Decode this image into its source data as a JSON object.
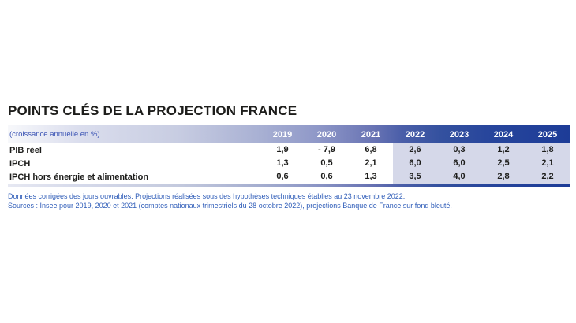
{
  "title": "POINTS CLÉS DE LA PROJECTION FRANCE",
  "table": {
    "unit_label": "(croissance annuelle en %)",
    "years": [
      "2019",
      "2020",
      "2021",
      "2022",
      "2023",
      "2024",
      "2025"
    ],
    "rows": [
      {
        "label": "PIB réel",
        "values": [
          "1,9",
          "- 7,9",
          "6,8",
          "2,6",
          "0,3",
          "1,2",
          "1,8"
        ]
      },
      {
        "label": "IPCH",
        "values": [
          "1,3",
          "0,5",
          "2,1",
          "6,0",
          "6,0",
          "2,5",
          "2,1"
        ]
      },
      {
        "label": "IPCH hors énergie et alimentation",
        "values": [
          "0,6",
          "0,6",
          "1,3",
          "3,5",
          "4,0",
          "2,8",
          "2,2"
        ]
      }
    ]
  },
  "notes": {
    "line1": "Données corrigées des jours ouvrables. Projections réalisées sous des hypothèses techniques établies au 23 novembre 2022.",
    "line2": "Sources : Insee pour 2019, 2020 et 2021 (comptes nationaux trimestriels du 28 octobre 2022), projections Banque de France sur fond bleuté."
  },
  "colors": {
    "header_gradient_start": "#f7f8fb",
    "header_gradient_end": "#1d3c97",
    "projection_background": "#d5d8e9",
    "note_text": "#2e5cb8",
    "unit_text": "#3a53b4",
    "data_text": "#1d1d1b"
  },
  "chart_data": {
    "type": "table",
    "title": "POINTS CLÉS DE LA PROJECTION FRANCE",
    "unit": "croissance annuelle en %",
    "columns": [
      "2019",
      "2020",
      "2021",
      "2022",
      "2023",
      "2024",
      "2025"
    ],
    "rows": [
      {
        "label": "PIB réel",
        "values": [
          1.9,
          -7.9,
          6.8,
          2.6,
          0.3,
          1.2,
          1.8
        ]
      },
      {
        "label": "IPCH",
        "values": [
          1.3,
          0.5,
          2.1,
          6.0,
          6.0,
          2.5,
          2.1
        ]
      },
      {
        "label": "IPCH hors énergie et alimentation",
        "values": [
          0.6,
          0.6,
          1.3,
          3.5,
          4.0,
          2.8,
          2.2
        ]
      }
    ],
    "projection_columns": [
      "2022",
      "2023",
      "2024",
      "2025"
    ],
    "notes": [
      "Données corrigées des jours ouvrables. Projections réalisées sous des hypothèses techniques établies au 23 novembre 2022.",
      "Sources : Insee pour 2019, 2020 et 2021 (comptes nationaux trimestriels du 28 octobre 2022), projections Banque de France sur fond bleuté."
    ]
  }
}
